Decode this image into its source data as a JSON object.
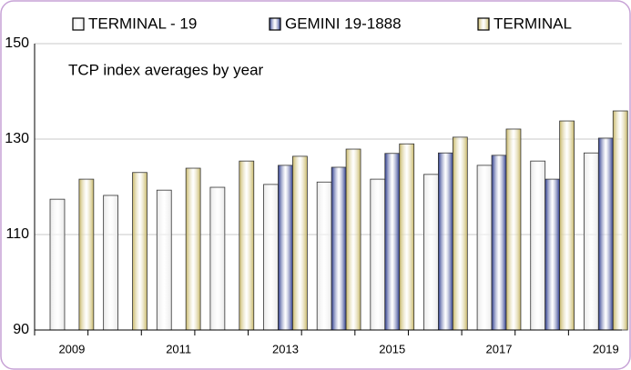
{
  "chart_data": {
    "type": "bar",
    "title": "TCP  index averages by year",
    "categories": [
      "2009",
      null,
      "2011",
      null,
      "2013",
      null,
      "2015",
      null,
      "2017",
      null,
      "2019"
    ],
    "series": [
      {
        "name": "TERMINAL - 19",
        "color": "#e8e8e8",
        "values": [
          117.4,
          118.2,
          119.3,
          119.9,
          120.5,
          121.0,
          121.6,
          122.6,
          124.5,
          125.4,
          127.1
        ]
      },
      {
        "name": "GEMINI 19-1888",
        "color": "#2b3a8c",
        "values": [
          null,
          null,
          null,
          null,
          124.5,
          124.1,
          127.0,
          127.1,
          126.6,
          121.6,
          130.2
        ]
      },
      {
        "name": "TERMINAL",
        "color": "#c8b868",
        "values": [
          121.6,
          123.0,
          123.9,
          125.4,
          126.4,
          127.9,
          129.0,
          130.4,
          132.1,
          133.8,
          135.9
        ]
      }
    ],
    "ylim": [
      90,
      150
    ],
    "yticks": [
      90,
      110,
      130,
      150
    ],
    "grid": true
  }
}
